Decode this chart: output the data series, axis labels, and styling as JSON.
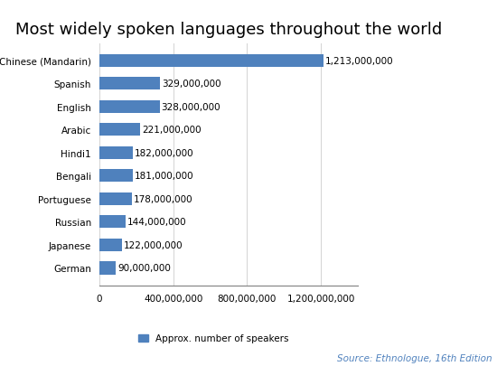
{
  "title": "Most widely spoken languages throughout the world",
  "languages": [
    "Chinese (Mandarin)",
    "Spanish",
    "English",
    "Arabic",
    "Hindi1",
    "Bengali",
    "Portuguese",
    "Russian",
    "Japanese",
    "German"
  ],
  "values": [
    1213000000,
    329000000,
    328000000,
    221000000,
    182000000,
    181000000,
    178000000,
    144000000,
    122000000,
    90000000
  ],
  "labels": [
    "1,213,000,000",
    "329,000,000",
    "328,000,000",
    "221,000,000",
    "182,000,000",
    "181,000,000",
    "178,000,000",
    "144,000,000",
    "122,000,000",
    "90,000,000"
  ],
  "bar_color": "#4F81BD",
  "background_color": "#FFFFFF",
  "xlim": [
    0,
    1400000000
  ],
  "xticks": [
    0,
    400000000,
    800000000,
    1200000000
  ],
  "xtick_labels": [
    "0",
    "400,000,000",
    "800,000,000",
    "1,200,000,000"
  ],
  "legend_label": "Approx. number of speakers",
  "source_text": "Source: Ethnologue, 16th Edition",
  "title_fontsize": 13,
  "label_fontsize": 7.5,
  "tick_fontsize": 7.5,
  "source_fontsize": 7.5
}
